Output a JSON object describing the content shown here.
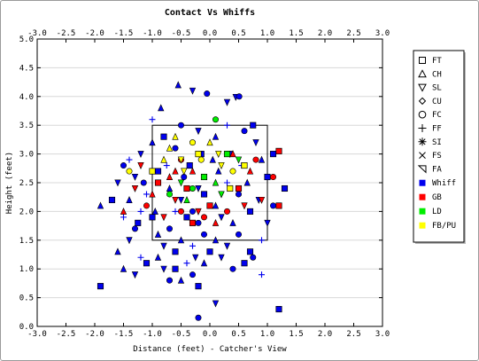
{
  "chart_data": {
    "type": "scatter",
    "title": "Contact Vs Whiffs",
    "xlabel": "Distance (feet) - Catcher's View",
    "ylabel": "Height (feet)",
    "xlim": [
      -3.0,
      3.0
    ],
    "ylim": [
      0.0,
      5.0
    ],
    "x_ticks": [
      "-3.0",
      "-2.5",
      "-2.0",
      "-1.5",
      "-1.0",
      "-0.5",
      "0.0",
      "0.5",
      "1.0",
      "1.5",
      "2.0",
      "2.5",
      "3.0"
    ],
    "y_ticks": [
      "0.0",
      "0.5",
      "1.0",
      "1.5",
      "2.0",
      "2.5",
      "3.0",
      "3.5",
      "4.0",
      "4.5",
      "5.0"
    ],
    "grid": "horizontal",
    "strike_zone": {
      "x": [
        -1.0,
        1.0
      ],
      "y": [
        1.5,
        3.5
      ]
    },
    "legend_position": "right",
    "legend": {
      "pitch_types": [
        {
          "label": "FT",
          "marker": "square-open"
        },
        {
          "label": "CH",
          "marker": "triangle-up-open"
        },
        {
          "label": "SL",
          "marker": "triangle-down-open"
        },
        {
          "label": "CU",
          "marker": "diamond-open"
        },
        {
          "label": "FC",
          "marker": "circle-open"
        },
        {
          "label": "FF",
          "marker": "plus"
        },
        {
          "label": "SI",
          "marker": "asterisk"
        },
        {
          "label": "FS",
          "marker": "cross"
        },
        {
          "label": "FA",
          "marker": "triangle-left-open"
        }
      ],
      "results": [
        {
          "label": "Whiff",
          "color": "#0000ee"
        },
        {
          "label": "GB",
          "color": "#ff0000"
        },
        {
          "label": "LD",
          "color": "#00ee00"
        },
        {
          "label": "FB/PU",
          "color": "#ffff00"
        }
      ]
    },
    "series": [
      {
        "name": "Whiff",
        "color": "#0000ee",
        "points": [
          [
            -1.9,
            0.7
          ],
          [
            -1.5,
            1.0
          ],
          [
            -1.3,
            0.9
          ],
          [
            -1.2,
            1.2
          ],
          [
            -1.1,
            1.1
          ],
          [
            -0.9,
            1.2
          ],
          [
            -0.8,
            1.0
          ],
          [
            -0.7,
            0.8
          ],
          [
            -0.6,
            1.0
          ],
          [
            -0.5,
            0.8
          ],
          [
            -0.4,
            1.1
          ],
          [
            -0.3,
            0.9
          ],
          [
            -0.2,
            0.7
          ],
          [
            -0.1,
            1.1
          ],
          [
            0.2,
            1.2
          ],
          [
            0.4,
            1.0
          ],
          [
            0.6,
            1.1
          ],
          [
            0.9,
            0.9
          ],
          [
            0.1,
            0.4
          ],
          [
            -0.2,
            0.15
          ],
          [
            1.2,
            0.3
          ],
          [
            -1.6,
            1.3
          ],
          [
            -1.4,
            1.5
          ],
          [
            -1.3,
            1.7
          ],
          [
            -1.2,
            2.0
          ],
          [
            -1.4,
            2.2
          ],
          [
            -1.6,
            2.5
          ],
          [
            -1.5,
            2.8
          ],
          [
            -1.7,
            2.2
          ],
          [
            -1.9,
            2.1
          ],
          [
            -1.3,
            2.6
          ],
          [
            -1.1,
            2.3
          ],
          [
            -1.0,
            1.9
          ],
          [
            -0.9,
            1.6
          ],
          [
            -0.8,
            1.4
          ],
          [
            -0.7,
            1.7
          ],
          [
            -0.6,
            1.3
          ],
          [
            -0.5,
            1.5
          ],
          [
            -0.3,
            1.4
          ],
          [
            -0.1,
            1.6
          ],
          [
            0.0,
            1.3
          ],
          [
            0.1,
            1.5
          ],
          [
            0.3,
            1.4
          ],
          [
            0.5,
            1.6
          ],
          [
            0.7,
            1.3
          ],
          [
            0.9,
            1.5
          ],
          [
            1.0,
            1.8
          ],
          [
            1.1,
            2.1
          ],
          [
            1.0,
            2.6
          ],
          [
            0.9,
            2.9
          ],
          [
            0.8,
            3.2
          ],
          [
            0.6,
            3.4
          ],
          [
            0.3,
            3.5
          ],
          [
            0.1,
            3.3
          ],
          [
            -0.2,
            3.4
          ],
          [
            -0.5,
            3.5
          ],
          [
            -0.8,
            3.3
          ],
          [
            -1.0,
            3.2
          ],
          [
            -1.2,
            3.0
          ],
          [
            -1.4,
            2.9
          ],
          [
            -0.9,
            2.7
          ],
          [
            -0.7,
            2.4
          ],
          [
            -0.5,
            2.2
          ],
          [
            -0.3,
            2.0
          ],
          [
            -0.1,
            2.3
          ],
          [
            0.1,
            2.1
          ],
          [
            0.3,
            2.5
          ],
          [
            0.5,
            2.3
          ],
          [
            0.7,
            2.0
          ],
          [
            0.4,
            1.8
          ],
          [
            0.2,
            1.9
          ],
          [
            -0.2,
            1.8
          ],
          [
            -0.4,
            1.9
          ],
          [
            -0.6,
            2.0
          ],
          [
            0.45,
            3.99
          ],
          [
            0.51,
            4.0
          ],
          [
            1.3,
            2.4
          ],
          [
            -0.55,
            4.2
          ],
          [
            -0.3,
            4.1
          ],
          [
            -0.05,
            4.05
          ],
          [
            -1.0,
            3.6
          ],
          [
            -0.85,
            3.8
          ],
          [
            0.3,
            3.9
          ],
          [
            -0.6,
            3.1
          ],
          [
            -0.35,
            2.8
          ],
          [
            0.15,
            2.7
          ],
          [
            0.35,
            3.0
          ],
          [
            0.55,
            2.8
          ],
          [
            0.75,
            3.5
          ],
          [
            0.65,
            2.5
          ],
          [
            0.85,
            2.2
          ],
          [
            -1.15,
            2.5
          ],
          [
            -1.25,
            1.8
          ],
          [
            -0.95,
            2.0
          ],
          [
            -0.75,
            2.8
          ],
          [
            -0.45,
            2.6
          ],
          [
            -0.15,
            3.0
          ],
          [
            0.05,
            2.9
          ],
          [
            -0.25,
            1.2
          ],
          [
            0.75,
            1.2
          ],
          [
            1.1,
            3.0
          ],
          [
            -1.5,
            1.9
          ],
          [
            -0.2,
            2.4
          ]
        ]
      },
      {
        "name": "GB",
        "color": "#ff0000",
        "points": [
          [
            -1.5,
            2.0
          ],
          [
            -1.3,
            2.4
          ],
          [
            -1.1,
            2.1
          ],
          [
            -0.9,
            2.5
          ],
          [
            -0.7,
            2.6
          ],
          [
            -0.6,
            2.2
          ],
          [
            -0.5,
            2.0
          ],
          [
            -0.4,
            2.4
          ],
          [
            -0.3,
            2.7
          ],
          [
            -0.2,
            2.0
          ],
          [
            -0.1,
            1.9
          ],
          [
            0.0,
            2.1
          ],
          [
            0.1,
            1.8
          ],
          [
            0.2,
            2.3
          ],
          [
            0.3,
            2.0
          ],
          [
            0.5,
            2.4
          ],
          [
            0.7,
            2.7
          ],
          [
            0.9,
            2.2
          ],
          [
            1.1,
            2.6
          ],
          [
            1.2,
            2.1
          ],
          [
            -1.0,
            2.3
          ],
          [
            -0.8,
            1.9
          ],
          [
            -0.5,
            2.9
          ],
          [
            -0.3,
            1.8
          ],
          [
            0.4,
            3.0
          ],
          [
            0.6,
            2.1
          ],
          [
            0.8,
            2.9
          ],
          [
            1.2,
            3.05
          ],
          [
            -0.6,
            2.7
          ],
          [
            -1.2,
            2.8
          ]
        ]
      },
      {
        "name": "LD",
        "color": "#00ee00",
        "points": [
          [
            -0.5,
            2.5
          ],
          [
            -0.3,
            2.4
          ],
          [
            -0.1,
            2.6
          ],
          [
            0.1,
            2.5
          ],
          [
            0.2,
            2.3
          ],
          [
            -0.7,
            2.3
          ],
          [
            0.3,
            3.0
          ],
          [
            -0.4,
            2.2
          ],
          [
            0.5,
            2.9
          ],
          [
            0.1,
            3.6
          ]
        ]
      },
      {
        "name": "FB/PU",
        "color": "#ffff00",
        "points": [
          [
            -1.4,
            2.7
          ],
          [
            -1.0,
            2.7
          ],
          [
            -0.7,
            3.1
          ],
          [
            -0.5,
            2.9
          ],
          [
            -0.3,
            3.2
          ],
          [
            -0.2,
            3.0
          ],
          [
            0.0,
            3.2
          ],
          [
            0.2,
            2.8
          ],
          [
            0.4,
            2.7
          ],
          [
            0.6,
            2.8
          ],
          [
            -0.6,
            3.3
          ],
          [
            -0.45,
            2.7
          ],
          [
            -0.15,
            2.9
          ],
          [
            0.35,
            2.4
          ],
          [
            -0.8,
            2.9
          ],
          [
            0.15,
            3.0
          ]
        ]
      }
    ]
  }
}
